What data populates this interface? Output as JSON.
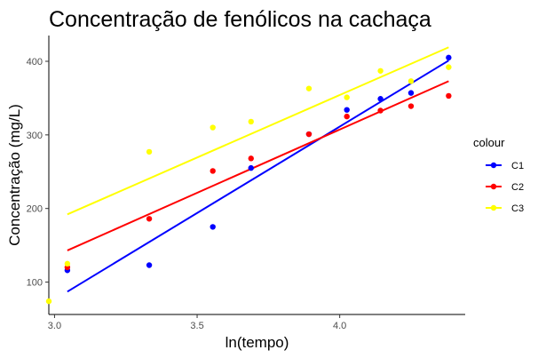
{
  "chart_data": {
    "type": "scatter",
    "title": "Concentração de fenólicos na cachaça",
    "xlabel": "ln(tempo)",
    "ylabel": "Concentração (mg/L)",
    "xlim": [
      2.98,
      4.44
    ],
    "ylim": [
      56,
      435
    ],
    "xticks": [
      3.0,
      3.5,
      4.0
    ],
    "xtick_labels": [
      "3.0",
      "3.5",
      "4.0"
    ],
    "yticks": [
      100,
      200,
      300,
      400
    ],
    "ytick_labels": [
      "100",
      "200",
      "300",
      "400"
    ],
    "grid": false,
    "legend_title": "colour",
    "legend_position": "right",
    "trendlines": true,
    "series": [
      {
        "name": "C1",
        "color": "#0000ff",
        "x": [
          3.045,
          3.332,
          3.555,
          3.689,
          3.892,
          4.025,
          4.143,
          4.25,
          4.382
        ],
        "y": [
          116,
          123,
          175,
          255,
          301,
          334,
          349,
          357,
          405
        ],
        "fit": [
          [
            3.045,
            87
          ],
          [
            4.382,
            401
          ]
        ]
      },
      {
        "name": "C2",
        "color": "#ff0000",
        "x": [
          3.045,
          3.332,
          3.555,
          3.689,
          3.892,
          4.025,
          4.143,
          4.25,
          4.382
        ],
        "y": [
          120,
          186,
          251,
          268,
          301,
          325,
          333,
          339,
          353
        ],
        "fit": [
          [
            3.045,
            143
          ],
          [
            4.382,
            373
          ]
        ]
      },
      {
        "name": "C3",
        "color": "#ffff00",
        "x": [
          2.98,
          3.045,
          3.332,
          3.555,
          3.689,
          3.892,
          4.025,
          4.143,
          4.25,
          4.382
        ],
        "y": [
          74,
          125,
          277,
          310,
          318,
          363,
          351,
          387,
          373,
          392
        ],
        "fit": [
          [
            3.045,
            192
          ],
          [
            4.382,
            419
          ]
        ]
      }
    ]
  }
}
